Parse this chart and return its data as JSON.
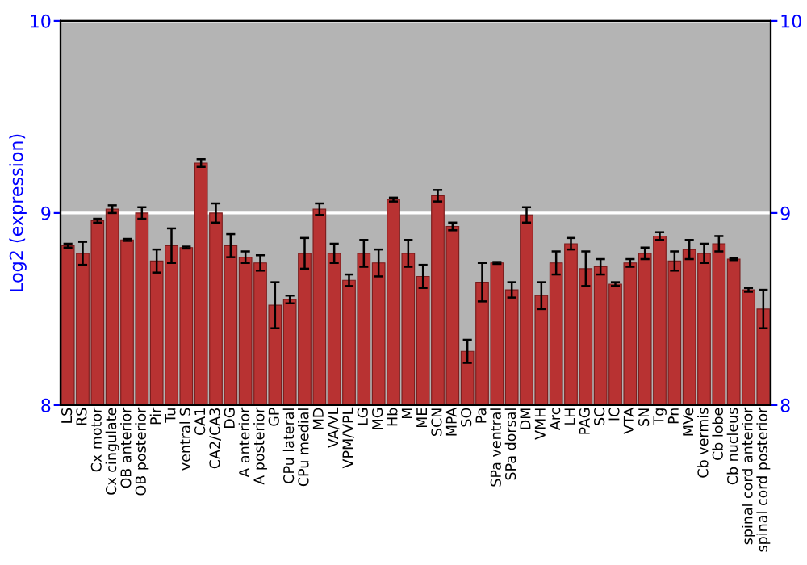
{
  "chart_data": {
    "type": "bar",
    "ylabel": "Log2 (expression)",
    "categories": [
      "LS",
      "RS",
      "Cx motor",
      "Cx cingulate",
      "OB anterior",
      "OB posterior",
      "Pir",
      "Tu",
      "ventral S",
      "CA1",
      "CA2/CA3",
      "DG",
      "A anterior",
      "A posterior",
      "GP",
      "CPu lateral",
      "CPu medial",
      "MD",
      "VA/VL",
      "VPM/VPL",
      "LG",
      "MG",
      "Hb",
      "M",
      "ME",
      "SCN",
      "MPA",
      "SO",
      "Pa",
      "SPa ventral",
      "SPa dorsal",
      "DM",
      "VMH",
      "Arc",
      "LH",
      "PAG",
      "SC",
      "IC",
      "VTA",
      "SN",
      "Tg",
      "Pn",
      "MVe",
      "Cb vermis",
      "Cb lobe",
      "Cb nucleus",
      "spinal cord anterior",
      "spinal cord posterior"
    ],
    "values": [
      8.83,
      8.79,
      8.96,
      9.02,
      8.86,
      9.0,
      8.75,
      8.83,
      8.82,
      9.26,
      9.0,
      8.83,
      8.77,
      8.74,
      8.52,
      8.55,
      8.79,
      9.02,
      8.79,
      8.65,
      8.79,
      8.74,
      9.07,
      8.79,
      8.67,
      9.09,
      8.93,
      8.28,
      8.64,
      8.74,
      8.6,
      8.99,
      8.57,
      8.74,
      8.84,
      8.71,
      8.72,
      8.63,
      8.74,
      8.79,
      8.88,
      8.75,
      8.81,
      8.79,
      8.84,
      8.76,
      8.6,
      8.5
    ],
    "errors": [
      0.01,
      0.06,
      0.01,
      0.02,
      0.005,
      0.03,
      0.06,
      0.09,
      0.005,
      0.02,
      0.05,
      0.06,
      0.03,
      0.04,
      0.12,
      0.02,
      0.08,
      0.03,
      0.05,
      0.03,
      0.07,
      0.07,
      0.01,
      0.07,
      0.06,
      0.03,
      0.02,
      0.06,
      0.1,
      0.005,
      0.04,
      0.04,
      0.07,
      0.06,
      0.03,
      0.09,
      0.04,
      0.01,
      0.02,
      0.03,
      0.02,
      0.05,
      0.05,
      0.05,
      0.04,
      0.005,
      0.01,
      0.1
    ],
    "color": "#b83232",
    "ylim": [
      8,
      10
    ],
    "yticks": [
      8,
      9,
      10
    ],
    "y2lim": [
      8,
      10
    ],
    "y2ticks": [
      8,
      9,
      10
    ],
    "grid": "y"
  }
}
